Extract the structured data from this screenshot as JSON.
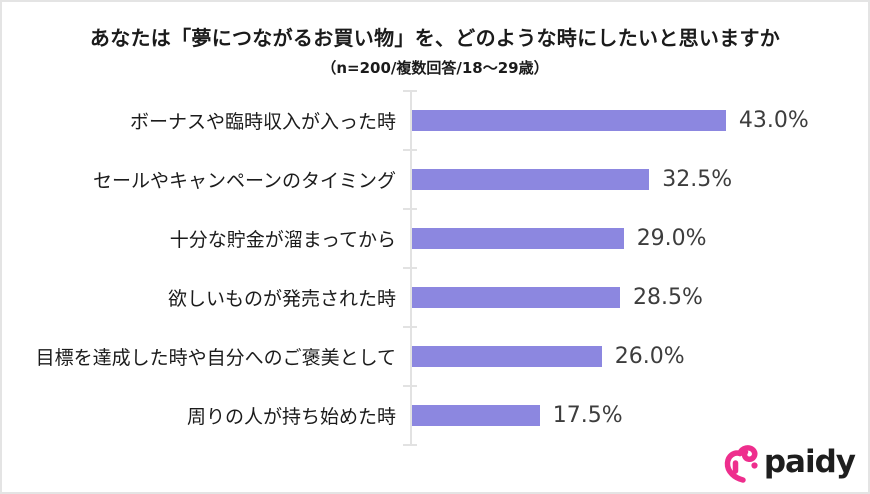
{
  "page": {
    "background": "#ffffff",
    "border_color": "#e4e4e4"
  },
  "header": {
    "title": "あなたは「夢につながるお買い物」を、どのような時にしたいと思いますか",
    "subtitle": "（n=200/複数回答/18〜29歳）"
  },
  "chart_data": {
    "type": "bar",
    "orientation": "horizontal",
    "title": "あなたは「夢につながるお買い物」を、どのような時にしたいと思いますか",
    "subtitle": "（n=200/複数回答/18〜29歳）",
    "categories": [
      "ボーナスや臨時収入が入った時",
      "セールやキャンペーンのタイミング",
      "十分な貯金が溜まってから",
      "欲しいものが発売された時",
      "目標を達成した時や自分へのご褒美として",
      "周りの人が持ち始めた時"
    ],
    "values": [
      43.0,
      32.5,
      29.0,
      28.5,
      26.0,
      17.5
    ],
    "value_labels": [
      "43.0%",
      "32.5%",
      "29.0%",
      "28.5%",
      "26.0%",
      "17.5%"
    ],
    "unit": "%",
    "xlabel": "",
    "ylabel": "",
    "grid": false,
    "legend": false,
    "data_labels": "outside-end",
    "bar_color": "#8c87e0",
    "axis_color": "#e2e2e2",
    "category_label_color": "#1b1b1b",
    "value_label_color": "#3d3d3d"
  },
  "footer": {
    "wordmark": "paidy",
    "logo_icon": "paidy-heart-icon",
    "logo_color": "#ee2e8d",
    "wordmark_color": "#1e1e1e"
  }
}
